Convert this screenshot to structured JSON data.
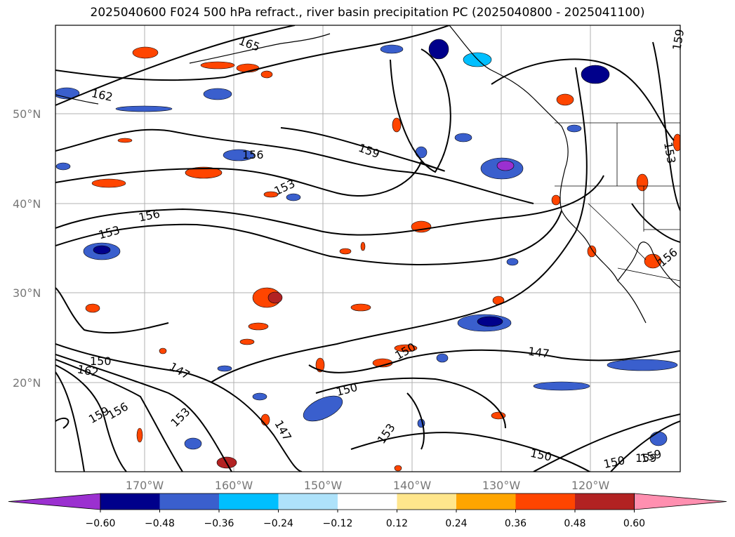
{
  "title": "2025040600 F024 500 hPa refract., river basin precipitation PC (2025040800 - 2025041100)",
  "lat_labels": [
    "50°N",
    "40°N",
    "30°N",
    "20°N"
  ],
  "lon_labels": [
    "170°W",
    "160°W",
    "150°W",
    "140°W",
    "130°W",
    "120°W"
  ],
  "contour_labels": [
    "162",
    "159",
    "156",
    "153",
    "150",
    "147",
    "165",
    "159",
    "159",
    "153",
    "156",
    "147",
    "150",
    "150",
    "153",
    "156",
    "159",
    "147",
    "156",
    "153",
    "159",
    "162",
    "150",
    "153",
    "150"
  ],
  "colorbar": {
    "ticks": [
      "−0.60",
      "−0.48",
      "−0.36",
      "−0.24",
      "−0.12",
      "0.12",
      "0.24",
      "0.36",
      "0.48",
      "0.60"
    ],
    "colors": [
      "#9b30d0",
      "#00008b",
      "#3a5fcd",
      "#00bfff",
      "#aee2fa",
      "#ffffff",
      "#ffe68c",
      "#ffa500",
      "#ff4500",
      "#b22222",
      "#ff8fb0"
    ]
  }
}
